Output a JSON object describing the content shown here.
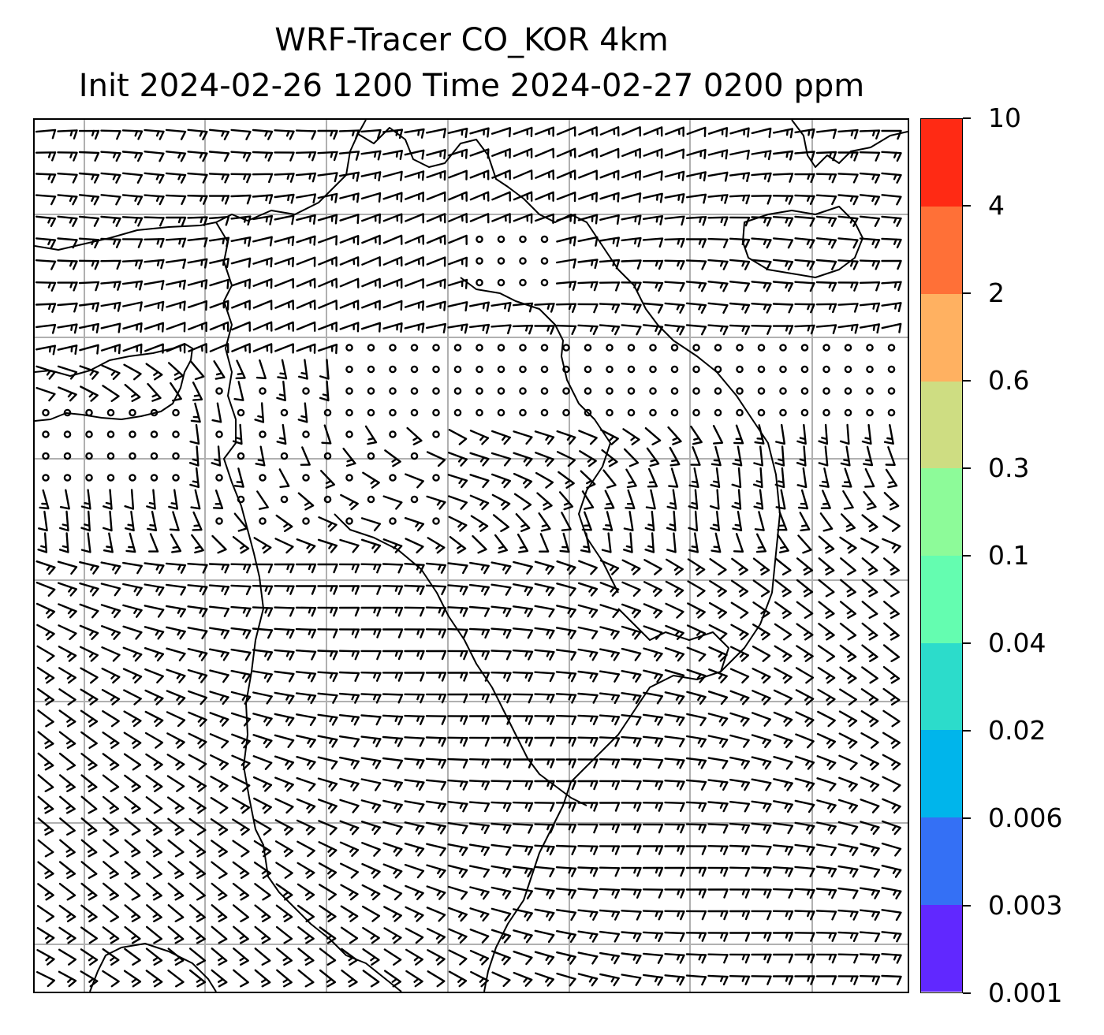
{
  "title": {
    "line1": "WRF-Tracer CO_KOR 4km",
    "line2": "Init 2024-02-26 1200 Time 2024-02-27 0200 ppm"
  },
  "map": {
    "graticule": "on",
    "overlay": "wind barbs",
    "coastline_color": "#000000",
    "grid_color": "#b0b0b0"
  },
  "colorbar": {
    "levels": [
      "0.001",
      "0.003",
      "0.006",
      "0.02",
      "0.04",
      "0.1",
      "0.3",
      "0.6",
      "2",
      "4",
      "10"
    ],
    "colors": [
      "#6128ff",
      "#3470f5",
      "#00b5eb",
      "#2cdccb",
      "#64fdb0",
      "#8dfb99",
      "#cedd82",
      "#ffb161",
      "#ff7037",
      "#ff2a14"
    ]
  }
}
